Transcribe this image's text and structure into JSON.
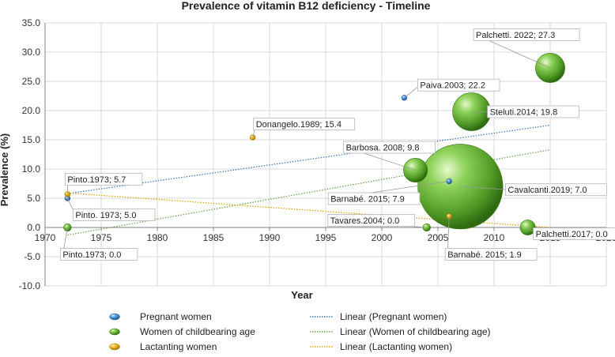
{
  "chart_data": {
    "type": "scatter",
    "title": "Prevalence of vitamin B12 deficiency - Timeline",
    "xlabel": "Year",
    "ylabel": "Prevalence (%)",
    "xlim": [
      1970,
      2020
    ],
    "ylim": [
      -10,
      35
    ],
    "xticks": [
      "1970",
      "1975",
      "1980",
      "1985",
      "1990",
      "1995",
      "2000",
      "2005",
      "2010",
      "2015",
      "2020"
    ],
    "yticks": [
      "-10.0",
      "-5.0",
      "0.0",
      "5.0",
      "10.0",
      "15.0",
      "20.0",
      "25.0",
      "30.0",
      "35.0"
    ],
    "colors": {
      "pregnant": "#3d7fc4",
      "women": "#5ea32f",
      "lactating": "#e4a50f",
      "women_trend": "#6aa84f"
    },
    "series": [
      {
        "key": "pregnant",
        "name": "Pregnant women",
        "points": [
          {
            "x": 1972,
            "y": 5.0,
            "size": 1,
            "label": "Pinto. 1973; 5.0"
          },
          {
            "x": 2002,
            "y": 22.2,
            "size": 1,
            "label": "Paiva.2003; 22.2"
          },
          {
            "x": 2006,
            "y": 7.9,
            "size": 1,
            "label": "Barnabé. 2015; 7.9"
          }
        ]
      },
      {
        "key": "women",
        "name": "Women of childbearing age",
        "points": [
          {
            "x": 1972,
            "y": 0.0,
            "size": 2,
            "label": "Pinto.1973; 0.0"
          },
          {
            "x": 2004,
            "y": 0.0,
            "size": 2,
            "label": "Tavares.2004; 0.0"
          },
          {
            "x": 2003,
            "y": 9.8,
            "size": 20,
            "label": "Barbosa. 2008; 9.8"
          },
          {
            "x": 2008,
            "y": 19.8,
            "size": 50,
            "label": "Steluti.2014; 19.8"
          },
          {
            "x": 2013,
            "y": 0.0,
            "size": 8,
            "label": "Palchetti.2017; 0.0"
          },
          {
            "x": 2015,
            "y": 27.3,
            "size": 30,
            "label": "Palchetti. 2022; 27.3"
          },
          {
            "x": 2007,
            "y": 7.0,
            "size": 250,
            "label": "Cavalcanti.2019; 7.0"
          }
        ]
      },
      {
        "key": "lactating",
        "name": "Lactanting women",
        "points": [
          {
            "x": 1972,
            "y": 5.7,
            "size": 1,
            "label": "Pinto.1973; 5.7"
          },
          {
            "x": 1988.5,
            "y": 15.4,
            "size": 1,
            "label": "Donangelo.1989; 15.4"
          },
          {
            "x": 2006,
            "y": 1.9,
            "size": 1,
            "label": "Barnabé. 2015; 1.9"
          }
        ]
      }
    ],
    "trendlines": [
      {
        "key": "pregnant",
        "name": "Linear (Pregnant women)",
        "x": [
          1972,
          2015
        ],
        "y": [
          5.8,
          17.5
        ]
      },
      {
        "key": "women_trend",
        "name": "Linear (Women of childbearing age)",
        "x": [
          1972,
          2015
        ],
        "y": [
          -1.3,
          13.3
        ]
      },
      {
        "key": "lactating",
        "name": "Linear (Lactanting women)",
        "x": [
          1972,
          2015
        ],
        "y": [
          5.9,
          0.0
        ]
      }
    ]
  },
  "legend": {
    "markers": [
      "Pregnant women",
      "Women of childbearing age",
      "Lactanting women"
    ],
    "lines": [
      "Linear (Pregnant women)",
      "Linear (Women of childbearing age)",
      "Linear (Lactanting women)"
    ]
  }
}
